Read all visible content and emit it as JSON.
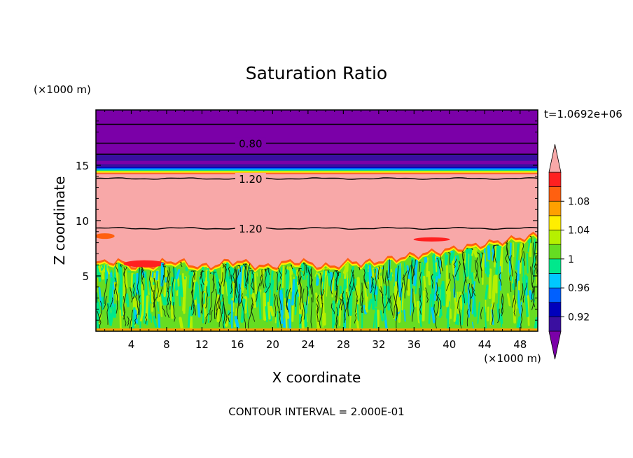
{
  "chart_data": {
    "type": "heatmap",
    "title": "Saturation Ratio",
    "xlabel": "X coordinate",
    "ylabel": "Z coordinate",
    "x_unit": "(×1000 m)",
    "y_unit": "(×1000 m)",
    "time_label": "t=1.0692e+06",
    "footer": "CONTOUR INTERVAL = 2.000E-01",
    "xlim": [
      0,
      50
    ],
    "ylim": [
      0,
      20
    ],
    "x_ticks": [
      4,
      8,
      12,
      16,
      20,
      24,
      28,
      32,
      36,
      40,
      44,
      48
    ],
    "y_ticks": [
      5,
      10,
      15
    ],
    "colorbar": {
      "levels": [
        0.9,
        0.92,
        0.94,
        0.96,
        0.98,
        1.0,
        1.02,
        1.04,
        1.06,
        1.08,
        1.1
      ],
      "tick_labels": [
        "0.92",
        "0.96",
        "1",
        "1.04",
        "1.08"
      ],
      "colors": [
        "#7b00a8",
        "#3a0fa0",
        "#0000bb",
        "#0060ff",
        "#00c8ff",
        "#00e88c",
        "#66dd22",
        "#b6f000",
        "#ffee00",
        "#ffa000",
        "#ff6010",
        "#ff2020",
        "#f8a8a8"
      ],
      "under_color": "#7b00a8",
      "over_color": "#f8a8a8"
    },
    "contour_labels": [
      {
        "value": "0.80",
        "x": 17.5,
        "z": 17.0
      },
      {
        "value": "1.20",
        "x": 17.5,
        "z": 13.8
      },
      {
        "value": "1.20",
        "x": 17.5,
        "z": 9.3
      }
    ],
    "regions": [
      {
        "description": "upper layer",
        "z_range": [
          14.5,
          20
        ],
        "value_range": "below 0.92"
      },
      {
        "description": "middle layer",
        "z_range": [
          6,
          14
        ],
        "value_range": "above 1.10"
      },
      {
        "description": "lower mixed layer",
        "z_range": [
          0,
          6
        ],
        "value_range": "about 0.98-1.04"
      }
    ]
  }
}
